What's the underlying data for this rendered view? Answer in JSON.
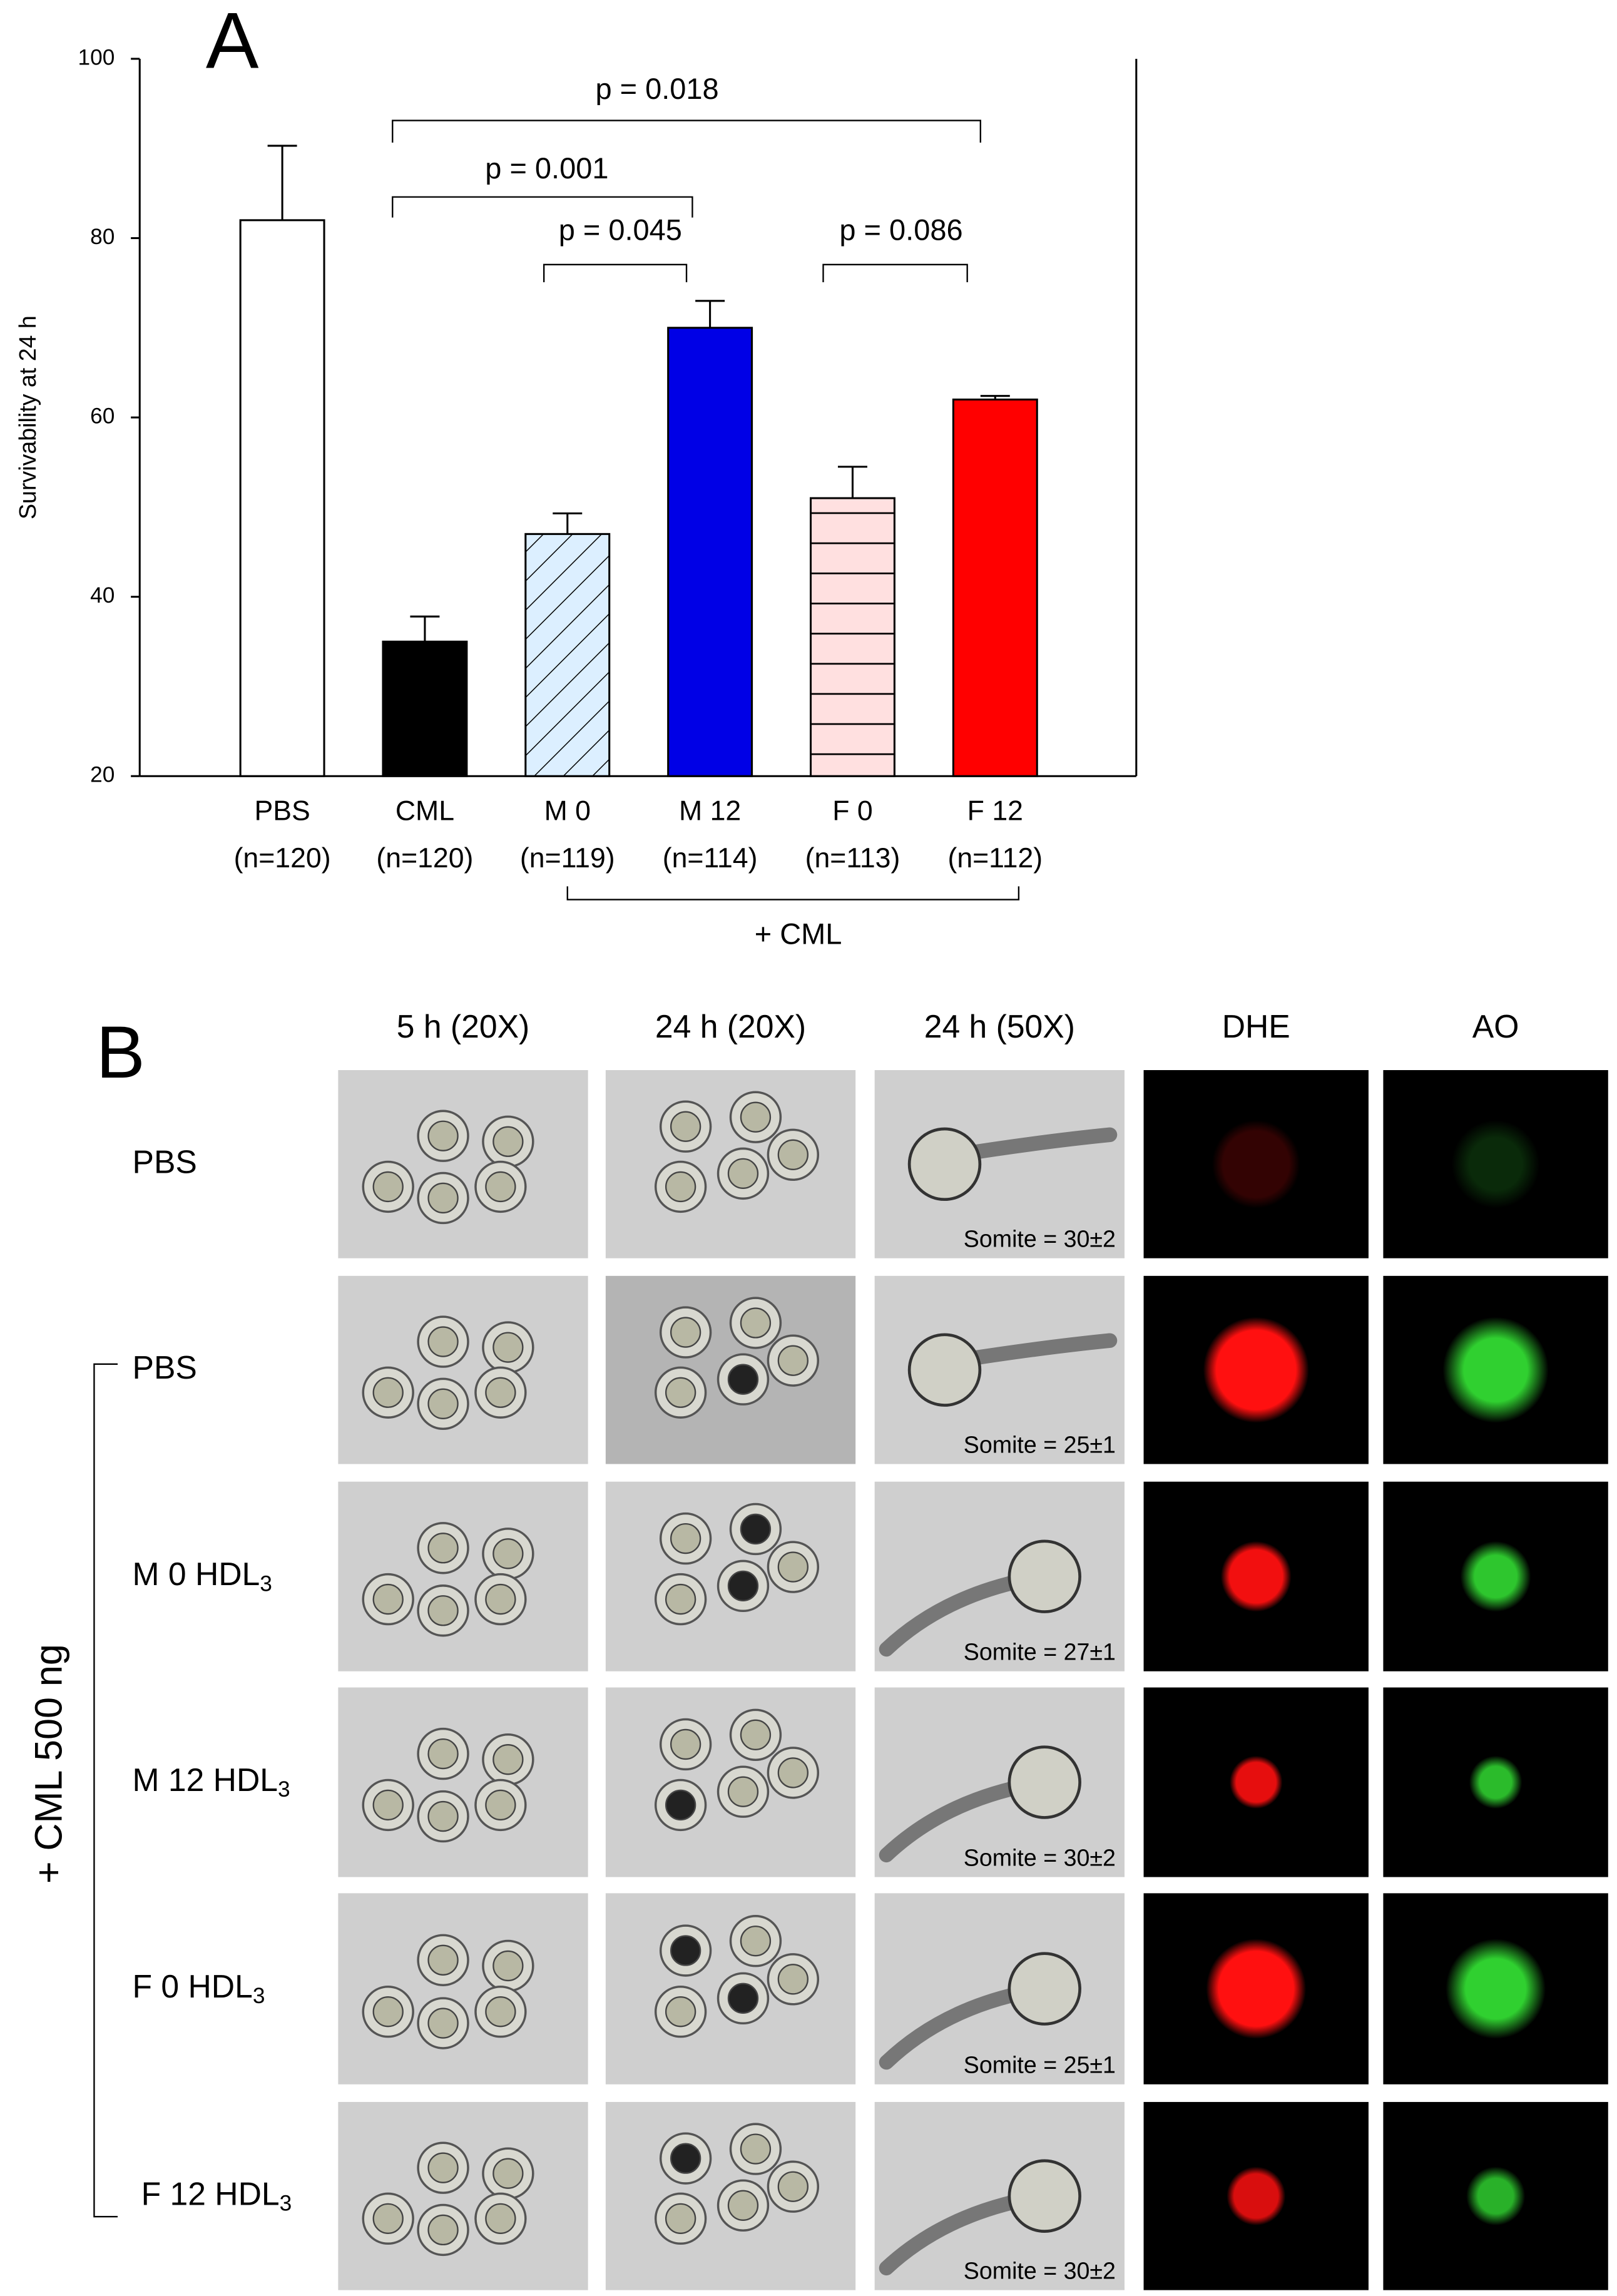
{
  "chart_data": {
    "type": "bar",
    "panel_label": "A",
    "y_label": "Survivability at 24 h",
    "categories": [
      "PBS",
      "CML",
      "M 0",
      "M 12",
      "F 0",
      "F 12"
    ],
    "sample_sizes": [
      "(n=120)",
      "(n=120)",
      "(n=119)",
      "(n=114)",
      "(n=113)",
      "(n=112)"
    ],
    "values": [
      82,
      35,
      47,
      70,
      51,
      62
    ],
    "errors": [
      8.3,
      2.8,
      2.3,
      3,
      3.5,
      0.4
    ],
    "colors": [
      "#ffffff",
      "#000000",
      "#dcefff",
      "#0000e6",
      "#ffe0e0",
      "#ff0000"
    ],
    "hatch": [
      "none",
      "none",
      "diagonal",
      "none",
      "horizontal",
      "none"
    ],
    "ylim": [
      20,
      100
    ],
    "yticks": [
      20,
      40,
      60,
      80,
      100
    ],
    "annotations": [
      "p = 0.018",
      "p = 0.001",
      "p = 0.045",
      "p = 0.086"
    ],
    "group_label": "+ CML"
  },
  "panel_b": {
    "panel_label": "B",
    "columns": [
      "5 h (20X)",
      "24 h (20X)",
      "24 h (50X)",
      "DHE",
      "AO"
    ],
    "side_label": "+ CML 500 ng",
    "rows": [
      {
        "label": "PBS",
        "somite": "Somite = 30±2"
      },
      {
        "label": "PBS",
        "somite": "Somite = 25±1"
      },
      {
        "label": "M 0 HDL",
        "subscript": "3",
        "somite": "Somite = 27±1"
      },
      {
        "label": "M 12 HDL",
        "subscript": "3",
        "somite": "Somite = 30±2"
      },
      {
        "label": "F 0 HDL",
        "subscript": "3",
        "somite": "Somite = 25±1"
      },
      {
        "label": "F 12 HDL",
        "subscript": "3",
        "somite": "Somite = 30±2"
      }
    ]
  }
}
